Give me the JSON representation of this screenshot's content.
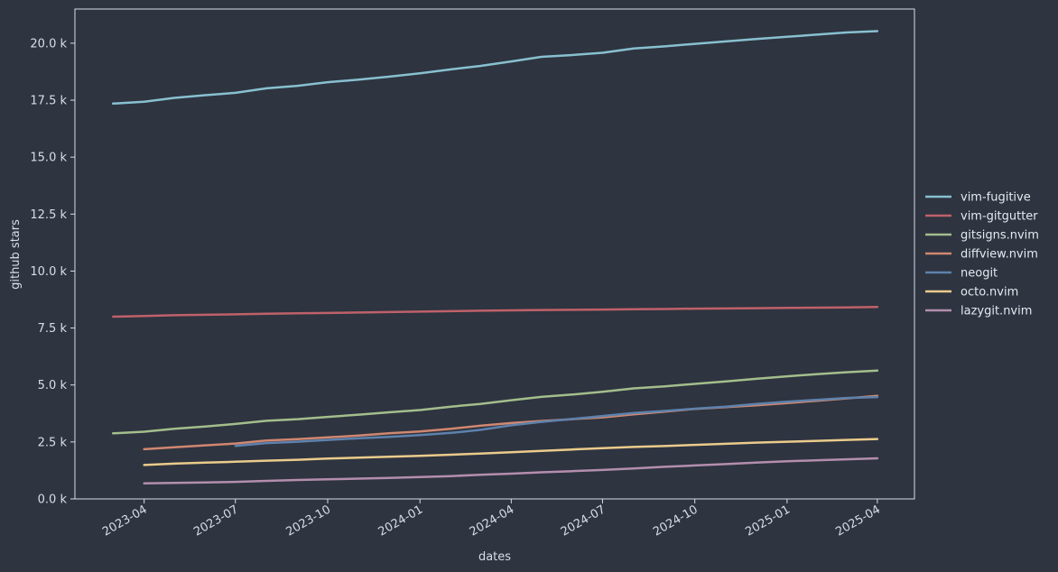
{
  "colors": {
    "background": "#2e3440",
    "axes": "#d8dee9",
    "text": "#d8dee9"
  },
  "chart_data": {
    "type": "line",
    "title": "",
    "xlabel": "dates",
    "ylabel": "github stars",
    "xlim": [
      "2023-01-22",
      "2025-05-08"
    ],
    "ylim": [
      0,
      21500
    ],
    "grid": false,
    "legend_position": "right",
    "x_ticks": [
      "2023-04-01",
      "2023-07-01",
      "2023-10-01",
      "2024-01-01",
      "2024-04-01",
      "2024-07-01",
      "2024-10-01",
      "2025-01-01",
      "2025-04-01"
    ],
    "x_tick_labels": [
      "2023-04",
      "2023-07",
      "2023-10",
      "2024-01",
      "2024-04",
      "2024-07",
      "2024-10",
      "2025-01",
      "2025-04"
    ],
    "y_ticks": [
      0,
      2500,
      5000,
      7500,
      10000,
      12500,
      15000,
      17500,
      20000
    ],
    "y_tick_labels": [
      "0.0 k",
      "2.5 k",
      "5.0 k",
      "7.5 k",
      "10.0 k",
      "12.5 k",
      "15.0 k",
      "17.5 k",
      "20.0 k"
    ],
    "series": [
      {
        "name": "vim-fugitive",
        "color": "#88c0d0",
        "x": [
          "2023-03-01",
          "2023-04-01",
          "2023-05-01",
          "2023-06-01",
          "2023-07-01",
          "2023-08-01",
          "2023-09-01",
          "2023-10-01",
          "2023-11-01",
          "2023-12-01",
          "2024-01-01",
          "2024-02-01",
          "2024-03-01",
          "2024-04-01",
          "2024-05-01",
          "2024-06-01",
          "2024-07-01",
          "2024-08-01",
          "2024-09-01",
          "2024-10-01",
          "2024-11-01",
          "2024-12-01",
          "2025-01-01",
          "2025-02-01",
          "2025-03-01",
          "2025-04-01"
        ],
        "values": [
          17350,
          17430,
          17600,
          17720,
          17820,
          18020,
          18130,
          18290,
          18400,
          18530,
          18680,
          18850,
          19000,
          19200,
          19400,
          19480,
          19580,
          19770,
          19860,
          19970,
          20080,
          20180,
          20280,
          20380,
          20470,
          20530
        ]
      },
      {
        "name": "vim-gitgutter",
        "color": "#bf616a",
        "x": [
          "2023-03-01",
          "2023-04-01",
          "2023-05-01",
          "2023-06-01",
          "2023-07-01",
          "2023-08-01",
          "2023-09-01",
          "2023-10-01",
          "2023-11-01",
          "2023-12-01",
          "2024-01-01",
          "2024-02-01",
          "2024-03-01",
          "2024-04-01",
          "2024-05-01",
          "2024-06-01",
          "2024-07-01",
          "2024-08-01",
          "2024-09-01",
          "2024-10-01",
          "2024-11-01",
          "2024-12-01",
          "2025-01-01",
          "2025-02-01",
          "2025-03-01",
          "2025-04-01"
        ],
        "values": [
          8000,
          8030,
          8060,
          8080,
          8100,
          8130,
          8145,
          8160,
          8180,
          8200,
          8220,
          8240,
          8260,
          8275,
          8290,
          8300,
          8310,
          8325,
          8335,
          8350,
          8360,
          8370,
          8385,
          8395,
          8405,
          8420
        ]
      },
      {
        "name": "gitsigns.nvim",
        "color": "#a3be8c",
        "x": [
          "2023-03-01",
          "2023-04-01",
          "2023-05-01",
          "2023-06-01",
          "2023-07-01",
          "2023-08-01",
          "2023-09-01",
          "2023-10-01",
          "2023-11-01",
          "2023-12-01",
          "2024-01-01",
          "2024-02-01",
          "2024-03-01",
          "2024-04-01",
          "2024-05-01",
          "2024-06-01",
          "2024-07-01",
          "2024-08-01",
          "2024-09-01",
          "2024-10-01",
          "2024-11-01",
          "2024-12-01",
          "2025-01-01",
          "2025-02-01",
          "2025-03-01",
          "2025-04-01"
        ],
        "values": [
          2880,
          2950,
          3080,
          3180,
          3290,
          3430,
          3500,
          3600,
          3700,
          3800,
          3900,
          4050,
          4170,
          4330,
          4480,
          4580,
          4700,
          4850,
          4940,
          5050,
          5160,
          5270,
          5380,
          5480,
          5560,
          5630
        ]
      },
      {
        "name": "diffview.nvim",
        "color": "#d08770",
        "x": [
          "2023-04-01",
          "2023-05-01",
          "2023-06-01",
          "2023-07-01",
          "2023-08-01",
          "2023-09-01",
          "2023-10-01",
          "2023-11-01",
          "2023-12-01",
          "2024-01-01",
          "2024-02-01",
          "2024-03-01",
          "2024-04-01",
          "2024-05-01",
          "2024-06-01",
          "2024-07-01",
          "2024-08-01",
          "2024-09-01",
          "2024-10-01",
          "2024-11-01",
          "2024-12-01",
          "2025-01-01",
          "2025-02-01",
          "2025-03-01",
          "2025-04-01"
        ],
        "values": [
          2180,
          2270,
          2350,
          2430,
          2560,
          2620,
          2700,
          2780,
          2880,
          2960,
          3080,
          3210,
          3330,
          3420,
          3500,
          3580,
          3710,
          3830,
          3950,
          4030,
          4110,
          4210,
          4310,
          4410,
          4520
        ]
      },
      {
        "name": "neogit",
        "color": "#5e81ac",
        "x": [
          "2023-07-01",
          "2023-08-01",
          "2023-09-01",
          "2023-10-01",
          "2023-11-01",
          "2023-12-01",
          "2024-01-01",
          "2024-02-01",
          "2024-03-01",
          "2024-04-01",
          "2024-05-01",
          "2024-06-01",
          "2024-07-01",
          "2024-08-01",
          "2024-09-01",
          "2024-10-01",
          "2024-11-01",
          "2024-12-01",
          "2025-01-01",
          "2025-02-01",
          "2025-03-01",
          "2025-04-01"
        ],
        "values": [
          2330,
          2450,
          2510,
          2590,
          2660,
          2720,
          2800,
          2900,
          3030,
          3230,
          3380,
          3510,
          3640,
          3770,
          3860,
          3960,
          4050,
          4170,
          4270,
          4350,
          4430,
          4470
        ]
      },
      {
        "name": "octo.nvim",
        "color": "#ebcb8b",
        "x": [
          "2023-04-01",
          "2023-05-01",
          "2023-06-01",
          "2023-07-01",
          "2023-08-01",
          "2023-09-01",
          "2023-10-01",
          "2023-11-01",
          "2023-12-01",
          "2024-01-01",
          "2024-02-01",
          "2024-03-01",
          "2024-04-01",
          "2024-05-01",
          "2024-06-01",
          "2024-07-01",
          "2024-08-01",
          "2024-09-01",
          "2024-10-01",
          "2024-11-01",
          "2024-12-01",
          "2025-01-01",
          "2025-02-01",
          "2025-03-01",
          "2025-04-01"
        ],
        "values": [
          1490,
          1550,
          1590,
          1630,
          1680,
          1720,
          1770,
          1810,
          1850,
          1890,
          1940,
          1990,
          2050,
          2110,
          2170,
          2230,
          2280,
          2320,
          2370,
          2420,
          2470,
          2510,
          2550,
          2590,
          2630
        ]
      },
      {
        "name": "lazygit.nvim",
        "color": "#b48ead",
        "x": [
          "2023-04-01",
          "2023-05-01",
          "2023-06-01",
          "2023-07-01",
          "2023-08-01",
          "2023-09-01",
          "2023-10-01",
          "2023-11-01",
          "2023-12-01",
          "2024-01-01",
          "2024-02-01",
          "2024-03-01",
          "2024-04-01",
          "2024-05-01",
          "2024-06-01",
          "2024-07-01",
          "2024-08-01",
          "2024-09-01",
          "2024-10-01",
          "2024-11-01",
          "2024-12-01",
          "2025-01-01",
          "2025-02-01",
          "2025-03-01",
          "2025-04-01"
        ],
        "values": [
          680,
          700,
          720,
          750,
          790,
          830,
          860,
          890,
          920,
          960,
          1000,
          1060,
          1110,
          1170,
          1220,
          1270,
          1340,
          1410,
          1470,
          1530,
          1590,
          1650,
          1700,
          1740,
          1780
        ]
      }
    ]
  }
}
